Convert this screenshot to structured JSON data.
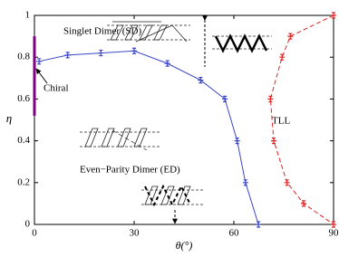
{
  "chart_data": {
    "type": "line",
    "xlabel": "θ(°)",
    "ylabel": "η",
    "xlim": [
      0,
      90
    ],
    "ylim": [
      0,
      1
    ],
    "xticks": [
      0,
      30,
      60,
      90
    ],
    "yticks": [
      0,
      0.2,
      0.4,
      0.6,
      0.8,
      1
    ],
    "series": [
      {
        "color": "#3a45c8",
        "line_style": "solid",
        "marker": true,
        "x": [
          1.4,
          10,
          20,
          30,
          40,
          50,
          57.3,
          61,
          63.5,
          67.4
        ],
        "values": [
          0.78,
          0.81,
          0.82,
          0.83,
          0.77,
          0.69,
          0.6,
          0.4,
          0.2,
          0
        ]
      },
      {
        "color": "#e02424",
        "line_style": "dashed",
        "marker": true,
        "x": [
          90,
          77,
          74.5,
          71,
          72,
          76,
          81,
          90
        ],
        "values": [
          1,
          0.9,
          0.8,
          0.6,
          0.4,
          0.2,
          0.1,
          0
        ]
      },
      {
        "color": "#800080",
        "line_style": "thick",
        "marker": false,
        "x": [
          0,
          0
        ],
        "values": [
          0.52,
          0.9
        ]
      }
    ],
    "annotations": [
      "Singlet Dimer (SD)",
      "Chiral",
      "TLL",
      "Even−Parity Dimer (ED)"
    ]
  }
}
